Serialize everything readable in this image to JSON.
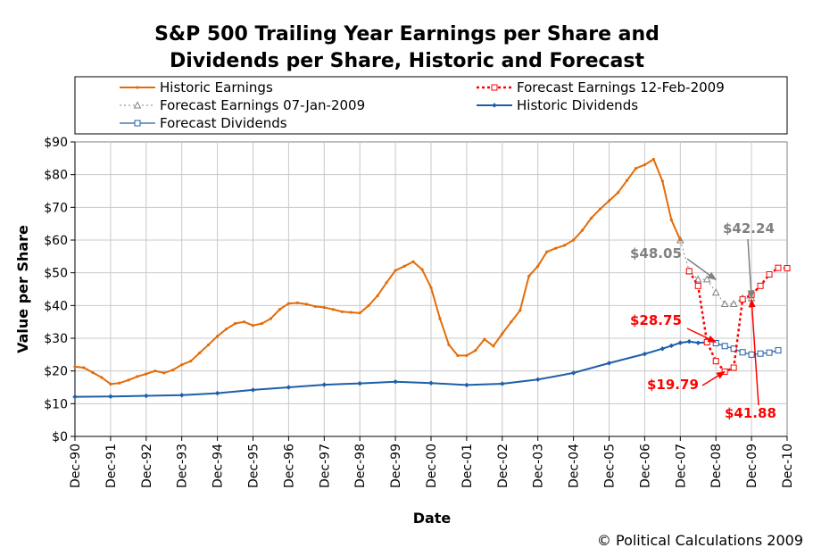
{
  "chart_data": {
    "type": "line",
    "title_lines": [
      "S&P 500 Trailing Year Earnings per Share and",
      "Dividends per Share, Historic and Forecast"
    ],
    "xlabel": "Date",
    "ylabel": "Value per Share",
    "ylim": [
      0,
      90
    ],
    "yticks": [
      0,
      10,
      20,
      30,
      40,
      50,
      60,
      70,
      80,
      90
    ],
    "ytick_labels": [
      "$0",
      "$10",
      "$20",
      "$30",
      "$40",
      "$50",
      "$60",
      "$70",
      "$80",
      "$90"
    ],
    "xlim": [
      1990.92,
      2010.92
    ],
    "xtick_labels": [
      "Dec-90",
      "Dec-91",
      "Dec-92",
      "Dec-93",
      "Dec-94",
      "Dec-95",
      "Dec-96",
      "Dec-97",
      "Dec-98",
      "Dec-99",
      "Dec-00",
      "Dec-01",
      "Dec-02",
      "Dec-03",
      "Dec-04",
      "Dec-05",
      "Dec-06",
      "Dec-07",
      "Dec-08",
      "Dec-09",
      "Dec-10"
    ],
    "grid": true,
    "legend_position": "top",
    "series": [
      {
        "name": "Historic Earnings",
        "color": "#e36c09",
        "style": "solid",
        "marker": "small-dot",
        "x": [
          1990.92,
          1991.17,
          1991.42,
          1991.67,
          1991.92,
          1992.17,
          1992.42,
          1992.67,
          1992.92,
          1993.17,
          1993.42,
          1993.67,
          1993.92,
          1994.17,
          1994.42,
          1994.67,
          1994.92,
          1995.17,
          1995.42,
          1995.67,
          1995.92,
          1996.17,
          1996.42,
          1996.67,
          1996.92,
          1997.17,
          1997.42,
          1997.67,
          1997.92,
          1998.17,
          1998.42,
          1998.67,
          1998.92,
          1999.17,
          1999.42,
          1999.67,
          1999.92,
          2000.17,
          2000.42,
          2000.67,
          2000.92,
          2001.17,
          2001.42,
          2001.67,
          2001.92,
          2002.17,
          2002.42,
          2002.67,
          2002.92,
          2003.17,
          2003.42,
          2003.67,
          2003.92,
          2004.17,
          2004.42,
          2004.67,
          2004.92,
          2005.17,
          2005.42,
          2005.67,
          2005.92,
          2006.17,
          2006.42,
          2006.67,
          2006.92,
          2007.17,
          2007.42,
          2007.67,
          2007.92
        ],
        "values": [
          21.3,
          21.0,
          19.5,
          18.0,
          16.0,
          16.3,
          17.2,
          18.3,
          19.1,
          20.0,
          19.4,
          20.3,
          21.9,
          23.0,
          25.5,
          28.0,
          30.6,
          32.8,
          34.5,
          35.0,
          33.9,
          34.5,
          36.0,
          38.8,
          40.6,
          40.8,
          40.4,
          39.7,
          39.4,
          38.8,
          38.1,
          37.9,
          37.7,
          40.0,
          43.0,
          47.0,
          50.7,
          52.0,
          53.4,
          51.0,
          45.5,
          36.0,
          28.0,
          24.7,
          24.7,
          26.3,
          29.7,
          27.6,
          31.4,
          35.0,
          38.5,
          49.0,
          52.0,
          56.4,
          57.5,
          58.4,
          60.0,
          63.0,
          66.7,
          69.5,
          72.0,
          74.5,
          78.2,
          81.9,
          83.0,
          84.7,
          78.0,
          66.2,
          60.0
        ]
      },
      {
        "name": "Forecast Earnings 12-Feb-2009",
        "color": "#ff0000",
        "style": "dotted",
        "marker": "square",
        "x": [
          2008.17,
          2008.42,
          2008.67,
          2008.92,
          2009.17,
          2009.42,
          2009.67,
          2009.92,
          2010.17,
          2010.42,
          2010.67,
          2010.92
        ],
        "values": [
          50.5,
          46.0,
          28.8,
          23.0,
          19.8,
          21.0,
          41.9,
          43.3,
          46.0,
          49.5,
          51.5,
          51.4
        ]
      },
      {
        "name": "Forecast Earnings 07-Jan-2009",
        "color": "#808080",
        "style": "dotted",
        "marker": "triangle",
        "x": [
          2007.92,
          2008.17,
          2008.42,
          2008.67,
          2008.92,
          2009.17,
          2009.42,
          2009.67,
          2009.92
        ],
        "values": [
          60.0,
          50.5,
          48.0,
          48.05,
          44.0,
          40.5,
          40.5,
          42.24,
          42.24
        ]
      },
      {
        "name": "Historic Dividends",
        "color": "#1f5fa8",
        "style": "solid",
        "marker": "small-diamond",
        "x": [
          1990.92,
          1991.92,
          1992.92,
          1993.92,
          1994.92,
          1995.92,
          1996.92,
          1997.92,
          1998.92,
          1999.92,
          2000.92,
          2001.92,
          2002.92,
          2003.92,
          2004.92,
          2005.92,
          2006.92,
          2007.42,
          2007.67,
          2007.92,
          2008.17,
          2008.42,
          2008.67
        ],
        "values": [
          12.1,
          12.2,
          12.4,
          12.6,
          13.2,
          14.2,
          15.0,
          15.8,
          16.2,
          16.7,
          16.3,
          15.7,
          16.1,
          17.4,
          19.4,
          22.4,
          25.2,
          26.8,
          27.7,
          28.6,
          29.0,
          28.6,
          28.75
        ]
      },
      {
        "name": "Forecast Dividends",
        "color": "#1f5fa8",
        "style": "solid-thin",
        "marker": "square",
        "x": [
          2008.92,
          2009.17,
          2009.42,
          2009.67,
          2009.92,
          2010.17,
          2010.42,
          2010.67
        ],
        "values": [
          28.5,
          27.6,
          26.8,
          25.7,
          25.0,
          25.3,
          25.6,
          26.3
        ]
      }
    ],
    "annotations": [
      {
        "text": "$48.05",
        "color": "#808080",
        "x": 2008.92,
        "y": 47.9
      },
      {
        "text": "$42.24",
        "color": "#808080",
        "x": 2009.92,
        "y": 42.2
      },
      {
        "text": "$28.75",
        "color": "#ff0000",
        "x": 2008.92,
        "y": 28.8
      },
      {
        "text": "$19.79",
        "color": "#ff0000",
        "x": 2009.17,
        "y": 19.8
      },
      {
        "text": "$41.88",
        "color": "#ff0000",
        "x": 2009.92,
        "y": 41.9
      }
    ],
    "copyright": "© Political Calculations 2009"
  }
}
